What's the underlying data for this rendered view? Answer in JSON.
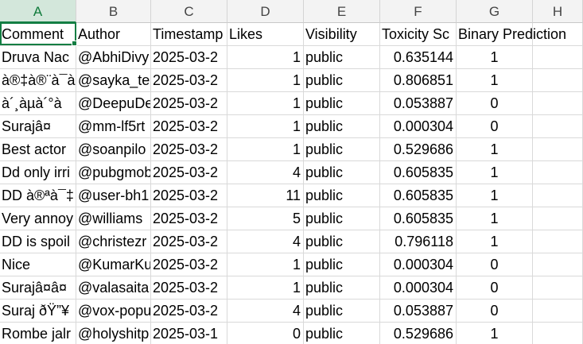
{
  "column_letters": [
    "A",
    "B",
    "C",
    "D",
    "E",
    "F",
    "G",
    "H"
  ],
  "selected_column": "A",
  "headers": [
    "Comment",
    "Author",
    "Timestamp",
    "Likes",
    "Visibility",
    "Toxicity Sc",
    "Binary Prediction"
  ],
  "rows": [
    [
      "Druva Nac",
      "@AbhiDivy",
      "2025-03-2",
      "1",
      "public",
      "0.635144",
      "1"
    ],
    [
      "à®‡à®¨à¯à",
      "@sayka_te",
      "2025-03-2",
      "1",
      "public",
      "0.806851",
      "1"
    ],
    [
      "à´¸àµà´°à",
      "@DeepuDe",
      "2025-03-2",
      "1",
      "public",
      "0.053887",
      "0"
    ],
    [
      "Surajâ¤",
      "@mm-lf5rt",
      "2025-03-2",
      "1",
      "public",
      "0.000304",
      "0"
    ],
    [
      "Best actor",
      "@soanpilo",
      "2025-03-2",
      "1",
      "public",
      "0.529686",
      "1"
    ],
    [
      "Dd only irri",
      "@pubgmob",
      "2025-03-2",
      "4",
      "public",
      "0.605835",
      "1"
    ],
    [
      "DD à®ªà¯‡",
      "@user-bh1",
      "2025-03-2",
      "11",
      "public",
      "0.605835",
      "1"
    ],
    [
      "Very annoy",
      "@williams",
      "2025-03-2",
      "5",
      "public",
      "0.605835",
      "1"
    ],
    [
      "DD is spoil",
      "@christezr",
      "2025-03-2",
      "4",
      "public",
      "0.796118",
      "1"
    ],
    [
      "Nice",
      "@KumarKu",
      "2025-03-2",
      "1",
      "public",
      "0.000304",
      "0"
    ],
    [
      "Surajâ¤â¤",
      "@valasaita",
      "2025-03-2",
      "1",
      "public",
      "0.000304",
      "0"
    ],
    [
      "Suraj ðŸ”¥",
      "@vox-popu",
      "2025-03-2",
      "4",
      "public",
      "0.053887",
      "0"
    ],
    [
      "Rombe jalr",
      "@holyshitp",
      "2025-03-1",
      "0",
      "public",
      "0.529686",
      "1"
    ]
  ]
}
